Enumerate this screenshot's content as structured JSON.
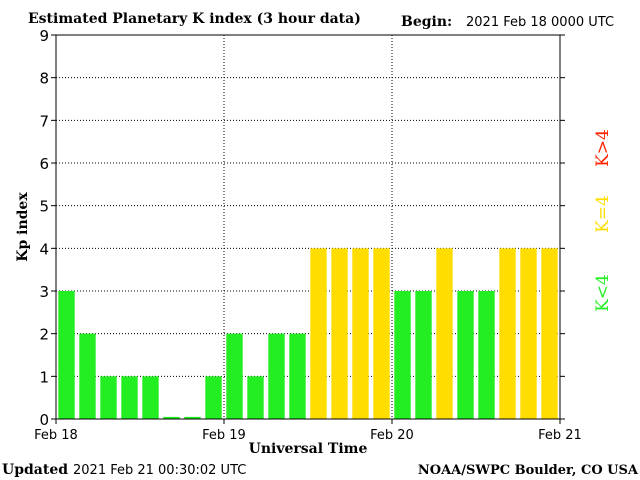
{
  "chart_data": {
    "type": "bar",
    "title": "Estimated Planetary K index (3 hour data)",
    "begin_label": "Begin:",
    "begin_value": "2021 Feb 18 0000 UTC",
    "ylabel": "Kp index",
    "xlabel": "Universal Time",
    "ylim": [
      0,
      9
    ],
    "yticks": [
      "0",
      "1",
      "2",
      "3",
      "4",
      "5",
      "6",
      "7",
      "8",
      "9"
    ],
    "x_tick_labels": [
      "Feb 18",
      "Feb 19",
      "Feb 20",
      "Feb 21"
    ],
    "grid": true,
    "values": [
      3,
      2,
      1,
      1,
      1,
      0.05,
      0.05,
      1,
      2,
      1,
      2,
      2,
      4,
      4,
      4,
      4,
      3,
      3,
      4,
      3,
      3,
      4,
      4,
      4
    ],
    "legend": {
      "below": "K<4",
      "equal": "K=4",
      "above": "K>4"
    },
    "colors": {
      "below": "#22ee22",
      "equal": "#ffdd00",
      "above": "#ff2200",
      "grid": "#000000"
    }
  },
  "footer": {
    "updated_label": "Updated",
    "updated_value": "2021 Feb 21 00:30:02 UTC",
    "source": "NOAA/SWPC Boulder, CO USA"
  }
}
